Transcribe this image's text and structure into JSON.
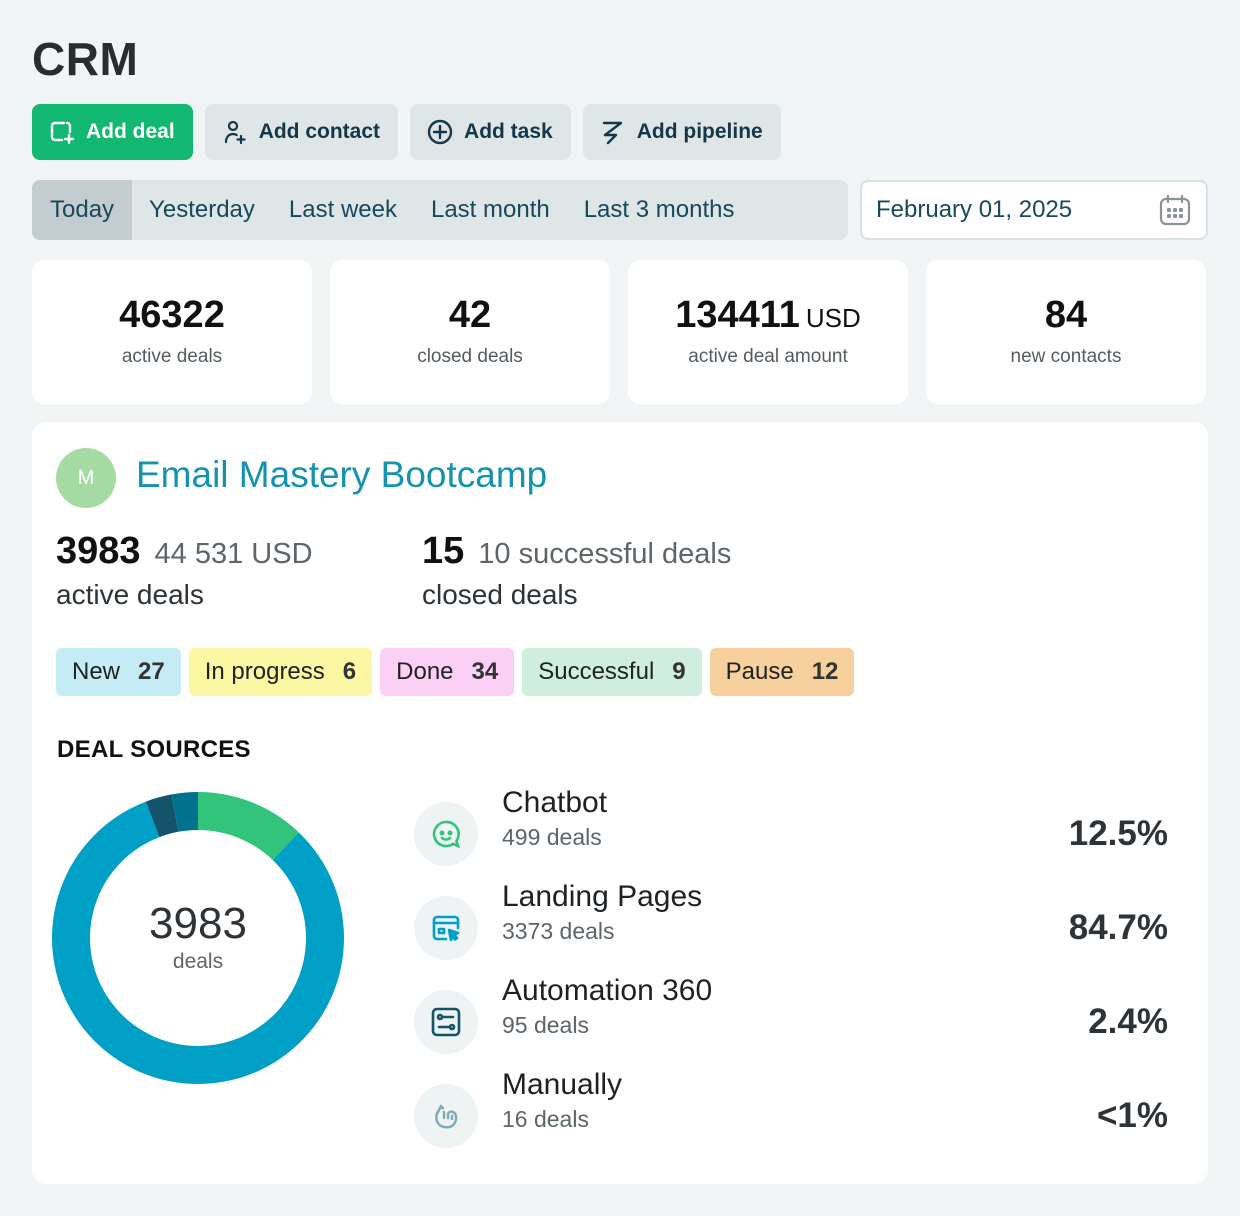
{
  "app": {
    "title": "CRM"
  },
  "actions": [
    {
      "label": "Add deal",
      "icon": "add-deal-icon"
    },
    {
      "label": "Add contact",
      "icon": "add-contact-icon"
    },
    {
      "label": "Add task",
      "icon": "add-task-icon"
    },
    {
      "label": "Add pipeline",
      "icon": "pipeline-icon"
    }
  ],
  "periods": [
    "Today",
    "Yesterday",
    "Last week",
    "Last month",
    "Last 3 months"
  ],
  "active_period": "Today",
  "date": {
    "value": "February 01, 2025",
    "icon": "calendar-icon"
  },
  "stats": [
    {
      "value": "46322",
      "unit": "",
      "label": "active deals"
    },
    {
      "value": "42",
      "unit": "",
      "label": "closed deals"
    },
    {
      "value": "134411",
      "unit": "USD",
      "label": "active deal amount"
    },
    {
      "value": "84",
      "unit": "",
      "label": "new contacts"
    }
  ],
  "pipeline": {
    "avatar_letter": "M",
    "name": "Email Mastery Bootcamp",
    "active": {
      "count": "3983",
      "amount": "44 531 USD",
      "label": "active deals"
    },
    "closed": {
      "count": "15",
      "successful": "10 successful deals",
      "label": "closed deals"
    },
    "stages": [
      {
        "label": "New",
        "count": "27",
        "color": "#c5ecf6"
      },
      {
        "label": "In progress",
        "count": "6",
        "color": "#fbf7a3"
      },
      {
        "label": "Done",
        "count": "34",
        "color": "#fbd0f6"
      },
      {
        "label": "Successful",
        "count": "9",
        "color": "#cfeee0"
      },
      {
        "label": "Pause",
        "count": "12",
        "color": "#f6d19e"
      }
    ]
  },
  "sources": {
    "heading": "DEAL SOURCES",
    "total": "3983",
    "total_label": "deals",
    "items": [
      {
        "name": "Chatbot",
        "deals": "499 deals",
        "percent": "12.5%",
        "icon": "chatbot-icon",
        "color": "#32c47b"
      },
      {
        "name": "Landing Pages",
        "deals": "3373 deals",
        "percent": "84.7%",
        "icon": "landing-page-icon",
        "color": "#00a0c6"
      },
      {
        "name": "Automation 360",
        "deals": "95 deals",
        "percent": "2.4%",
        "icon": "automation-icon",
        "color": "#14546a"
      },
      {
        "name": "Manually",
        "deals": "16 deals",
        "percent": "<1%",
        "icon": "manual-icon",
        "color": "#00718f"
      }
    ]
  },
  "chart_data": {
    "type": "pie",
    "categories": [
      "Chatbot",
      "Landing Pages",
      "Automation 360",
      "Manually"
    ],
    "values": [
      499,
      3373,
      95,
      16
    ],
    "colors": [
      "#32c47b",
      "#00a0c6",
      "#14546a",
      "#00718f"
    ]
  }
}
